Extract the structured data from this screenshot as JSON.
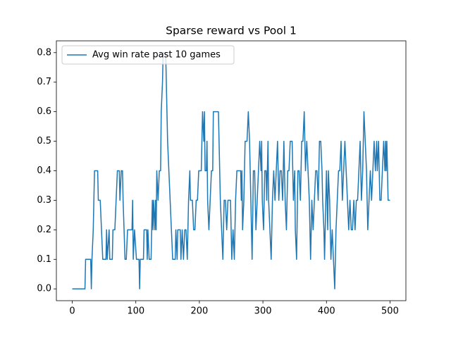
{
  "chart_data": {
    "type": "line",
    "title": "Sparse reward vs Pool 1",
    "x": [
      0,
      20,
      21,
      29,
      30,
      31,
      33,
      35,
      40,
      41,
      44,
      46,
      48,
      53,
      54,
      55,
      58,
      59,
      63,
      64,
      67,
      69,
      71,
      74,
      75,
      77,
      79,
      80,
      83,
      85,
      87,
      94,
      95,
      96,
      98,
      101,
      105,
      106,
      107,
      112,
      113,
      117,
      118,
      119,
      121,
      124,
      125,
      126,
      127,
      128,
      130,
      131,
      132,
      133,
      135,
      137,
      139,
      140,
      142,
      143,
      147,
      148,
      150,
      152,
      154,
      156,
      158,
      162,
      163,
      165,
      166,
      170,
      171,
      173,
      175,
      177,
      179,
      181,
      183,
      185,
      186,
      189,
      191,
      193,
      195,
      197,
      199,
      203,
      205,
      207,
      208,
      209,
      211,
      212,
      213,
      215,
      217,
      219,
      221,
      222,
      230,
      231,
      233,
      235,
      237,
      239,
      241,
      243,
      245,
      249,
      250,
      251,
      253,
      255,
      257,
      259,
      265,
      266,
      267,
      268,
      270,
      272,
      275,
      277,
      279,
      281,
      283,
      285,
      287,
      289,
      291,
      293,
      295,
      297,
      298,
      299,
      301,
      303,
      305,
      306,
      308,
      309,
      311,
      313,
      315,
      317,
      319,
      321,
      323,
      325,
      327,
      329,
      331,
      333,
      335,
      337,
      339,
      341,
      343,
      346,
      348,
      350,
      351,
      353,
      355,
      357,
      359,
      361,
      363,
      365,
      366,
      367,
      369,
      371,
      373,
      375,
      377,
      379,
      381,
      383,
      385,
      387,
      389,
      391,
      393,
      394,
      396,
      397,
      399,
      400,
      402,
      403,
      405,
      407,
      409,
      411,
      413,
      415,
      417,
      419,
      421,
      423,
      425,
      427,
      429,
      431,
      433,
      435,
      437,
      439,
      441,
      443,
      445,
      447,
      449,
      451,
      453,
      455,
      457,
      459,
      461,
      463,
      465,
      467,
      469,
      471,
      473,
      475,
      477,
      479,
      480,
      482,
      484,
      486,
      488,
      490,
      492,
      493,
      494,
      495,
      496,
      497,
      500
    ],
    "series": [
      {
        "name": "Avg win rate past 10 games",
        "color": "#1f77b4",
        "values": [
          0,
          0,
          0.1,
          0.1,
          0,
          0.1,
          0.2,
          0.4,
          0.4,
          0.3,
          0.3,
          0.2,
          0.1,
          0.1,
          0.2,
          0.1,
          0.2,
          0.1,
          0.1,
          0.2,
          0.2,
          0.3,
          0.4,
          0.4,
          0.3,
          0.4,
          0.4,
          0.3,
          0.1,
          0.1,
          0.2,
          0.2,
          0.3,
          0.1,
          0.2,
          0.1,
          0.1,
          0,
          0.1,
          0.1,
          0.2,
          0.2,
          0.1,
          0.2,
          0.1,
          0.1,
          0.2,
          0.3,
          0.2,
          0.3,
          0.2,
          0.3,
          0.2,
          0.4,
          0.3,
          0.4,
          0.4,
          0.6,
          0.7,
          0.8,
          0.8,
          0.7,
          0.5,
          0.4,
          0.3,
          0.2,
          0.1,
          0.1,
          0.2,
          0.1,
          0.2,
          0.2,
          0.1,
          0.2,
          0.1,
          0.2,
          0.2,
          0.1,
          0.3,
          0.4,
          0.3,
          0.3,
          0.2,
          0.2,
          0.3,
          0.3,
          0.4,
          0.4,
          0.6,
          0.5,
          0.6,
          0.4,
          0.4,
          0.5,
          0.3,
          0.2,
          0.3,
          0.4,
          0.4,
          0.6,
          0.6,
          0.5,
          0.3,
          0.2,
          0.1,
          0.3,
          0.3,
          0.2,
          0.3,
          0.3,
          0.2,
          0.1,
          0.2,
          0.1,
          0.3,
          0.4,
          0.4,
          0.3,
          0.4,
          0.2,
          0.3,
          0.5,
          0.5,
          0.6,
          0.5,
          0.3,
          0.1,
          0.4,
          0.4,
          0.2,
          0.3,
          0.4,
          0.5,
          0.4,
          0.5,
          0.3,
          0.2,
          0.4,
          0.4,
          0.3,
          0.5,
          0.3,
          0.2,
          0.1,
          0.3,
          0.4,
          0.3,
          0.4,
          0.5,
          0.3,
          0.4,
          0.4,
          0.3,
          0.5,
          0.3,
          0.2,
          0.4,
          0.4,
          0.5,
          0.5,
          0.3,
          0.4,
          0.2,
          0.1,
          0.4,
          0.4,
          0.3,
          0.5,
          0.5,
          0.6,
          0.5,
          0.4,
          0.5,
          0.4,
          0.3,
          0.1,
          0.3,
          0.2,
          0.3,
          0.4,
          0.4,
          0.3,
          0.5,
          0.5,
          0.4,
          0.3,
          0.2,
          0.1,
          0.3,
          0.4,
          0.2,
          0.4,
          0.3,
          0.1,
          0.2,
          0.1,
          0,
          0.2,
          0.3,
          0.4,
          0.4,
          0.5,
          0.3,
          0.4,
          0.5,
          0.4,
          0.3,
          0.2,
          0.3,
          0.2,
          0.2,
          0.3,
          0.2,
          0.3,
          0.3,
          0.4,
          0.5,
          0.3,
          0.4,
          0.6,
          0.5,
          0.4,
          0.2,
          0.3,
          0.4,
          0.3,
          0.4,
          0.5,
          0.4,
          0.5,
          0.4,
          0.5,
          0.3,
          0.3,
          0.4,
          0.5,
          0.4,
          0.5,
          0.4,
          0.5,
          0.4,
          0.3,
          0.3
        ]
      }
    ],
    "xlim": [
      -25,
      525
    ],
    "ylim": [
      -0.04,
      0.84
    ],
    "xticks": [
      0,
      100,
      200,
      300,
      400,
      500
    ],
    "yticks": [
      {
        "value": 0,
        "label": "0.0"
      },
      0.1,
      0.2,
      0.3,
      0.4,
      0.5,
      0.6,
      0.7,
      0.8
    ],
    "legend": "upper left"
  }
}
